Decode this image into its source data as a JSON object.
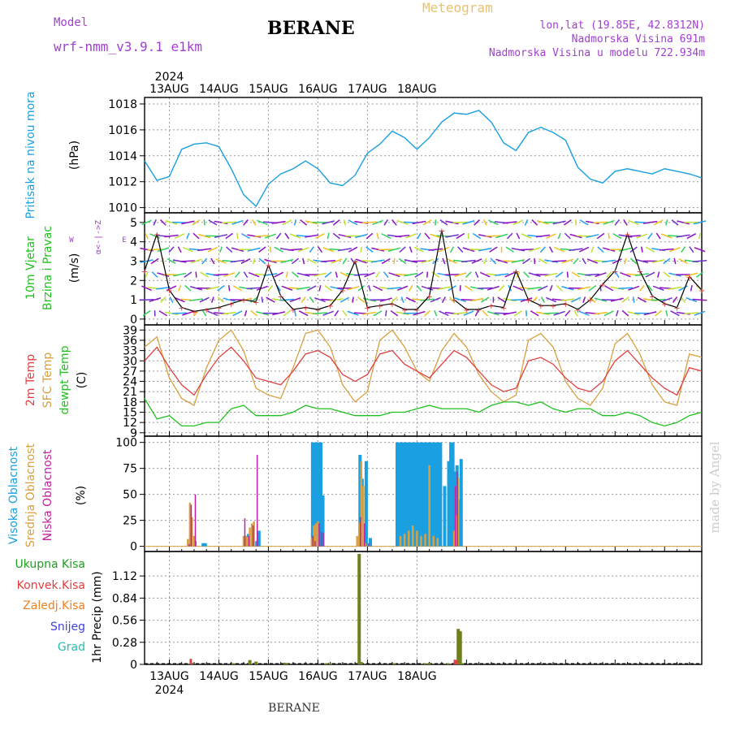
{
  "header": {
    "model_label": "Model",
    "model_value": "wrf-nmm_v3.9.1 e1km",
    "title": "BERANE",
    "meteogram": "Meteogram",
    "lonlat": "lon,lat (19.85E, 42.8312N)",
    "elev": "Nadmorska Visina 691m",
    "elev_model": "Nadmorska Visina u modelu 722.934m",
    "footer": "BERANE",
    "credit": "made by Angel",
    "year_top": "2024",
    "year_bottom": "2024"
  },
  "colors": {
    "pressure": "#1aa0e0",
    "temp2m": "#e04040",
    "sfc": "#d8a040",
    "dewpt": "#20c020",
    "visoka": "#1aa0e0",
    "srednja": "#d8a040",
    "niska": "#c020a0",
    "ukupna": "#20a020",
    "konvek": "#e04040",
    "zaledj": "#f08020",
    "snijeg": "#4040e0",
    "grad": "#20c0b0",
    "wind_label": "#20c020",
    "wind_arrow": "#9010c0"
  },
  "chart_data": [
    {
      "type": "line",
      "panel": "pressure",
      "ylabel_main": "Pritisak na nivou mora",
      "ylabel_unit": "(hPa)",
      "x_dates": [
        "13AUG",
        "14AUG",
        "15AUG",
        "16AUG",
        "17AUG",
        "18AUG"
      ],
      "x_start_hour": 12,
      "hours": [
        12,
        18,
        24,
        30,
        36,
        42,
        48,
        54,
        60,
        66,
        72,
        78,
        84,
        90,
        96,
        102,
        108,
        114,
        120,
        126,
        132,
        138,
        144,
        150,
        156,
        162,
        168,
        174,
        180,
        186,
        192,
        198,
        204,
        210,
        216,
        222,
        228,
        234,
        240,
        246,
        252,
        258,
        264,
        270,
        276,
        282
      ],
      "series": [
        {
          "name": "Pritisak na nivou mora",
          "values": [
            1013.6,
            1012.1,
            1012.4,
            1014.5,
            1014.9,
            1015.0,
            1014.7,
            1013.0,
            1011.0,
            1010.1,
            1011.8,
            1012.6,
            1013.0,
            1013.6,
            1013.0,
            1011.9,
            1011.7,
            1012.5,
            1014.2,
            1014.9,
            1015.9,
            1015.4,
            1014.5,
            1015.4,
            1016.6,
            1017.3,
            1017.2,
            1017.5,
            1016.6,
            1015.0,
            1014.4,
            1015.8,
            1016.2,
            1015.8,
            1015.2,
            1013.1,
            1012.2,
            1011.9,
            1012.8,
            1013.0,
            1012.8,
            1012.6,
            1013.0,
            1012.8,
            1012.6,
            1012.3
          ]
        }
      ],
      "ylim": [
        1009.6,
        1018.5
      ],
      "yticks": [
        1010,
        1012,
        1014,
        1016,
        1018
      ]
    },
    {
      "type": "line",
      "panel": "wind",
      "ylabel_main": "10m Vjetar",
      "ylabel_sub": "Brzina i Pravac",
      "ylabel_unit": "(m/s)",
      "compass": [
        "N",
        "S",
        "W",
        "E"
      ],
      "compass_axis": "α<-|->Z",
      "hours": [
        12,
        18,
        24,
        30,
        36,
        42,
        48,
        54,
        60,
        66,
        72,
        78,
        84,
        90,
        96,
        102,
        108,
        114,
        120,
        126,
        132,
        138,
        144,
        150,
        156,
        162,
        168,
        174,
        180,
        186,
        192,
        198,
        204,
        210,
        216,
        222,
        228,
        234,
        240,
        246,
        252,
        258,
        264,
        270,
        276,
        282
      ],
      "series": [
        {
          "name": "Brzina",
          "values": [
            2.5,
            4.4,
            1.5,
            0.6,
            0.4,
            0.5,
            0.6,
            0.8,
            1.0,
            0.9,
            2.8,
            1.2,
            0.5,
            0.6,
            0.5,
            0.7,
            1.5,
            3.0,
            0.6,
            0.7,
            0.8,
            0.5,
            0.5,
            1.2,
            4.6,
            1.0,
            0.5,
            0.5,
            0.7,
            0.6,
            2.5,
            1.0,
            0.7,
            0.7,
            0.8,
            0.5,
            1.0,
            1.8,
            2.5,
            4.4,
            2.5,
            1.2,
            0.8,
            0.6,
            2.2,
            1.5
          ]
        }
      ],
      "ylim": [
        -0.3,
        5.5
      ],
      "yticks": [
        0,
        1,
        2,
        3,
        4,
        5
      ]
    },
    {
      "type": "line",
      "panel": "temperature",
      "ylabel_series": [
        "2m Temp",
        "SFC Temp",
        "dewpt Temp"
      ],
      "ylabel_unit": "(C)",
      "hours": [
        12,
        18,
        24,
        30,
        36,
        42,
        48,
        54,
        60,
        66,
        72,
        78,
        84,
        90,
        96,
        102,
        108,
        114,
        120,
        126,
        132,
        138,
        144,
        150,
        156,
        162,
        168,
        174,
        180,
        186,
        192,
        198,
        204,
        210,
        216,
        222,
        228,
        234,
        240,
        246,
        252,
        258,
        264,
        270,
        276,
        282
      ],
      "series": [
        {
          "name": "2m Temp",
          "values": [
            30,
            34,
            28,
            23,
            20,
            26,
            31,
            34,
            30,
            25,
            24,
            23,
            27,
            32,
            33,
            31,
            26,
            24,
            26,
            32,
            33,
            29,
            27,
            25,
            29,
            33,
            31,
            27,
            23,
            21,
            22,
            30,
            31,
            29,
            25,
            22,
            21,
            24,
            30,
            33,
            29,
            25,
            22,
            20,
            28,
            27
          ]
        },
        {
          "name": "SFC Temp",
          "values": [
            34,
            37,
            25,
            19,
            17,
            28,
            36,
            39,
            33,
            22,
            20,
            19,
            28,
            38,
            39,
            34,
            23,
            18,
            21,
            36,
            39,
            34,
            27,
            24,
            33,
            38,
            34,
            26,
            21,
            18,
            20,
            36,
            38,
            34,
            24,
            19,
            17,
            22,
            35,
            38,
            32,
            23,
            18,
            17,
            32,
            31
          ]
        },
        {
          "name": "dewpt Temp",
          "values": [
            19,
            13,
            14,
            11,
            11,
            12,
            12,
            16,
            17,
            14,
            14,
            14,
            15,
            17,
            16,
            16,
            15,
            14,
            14,
            14,
            15,
            15,
            16,
            17,
            16,
            16,
            16,
            15,
            17,
            18,
            18,
            17,
            18,
            16,
            15,
            16,
            16,
            14,
            14,
            15,
            14,
            12,
            11,
            12,
            14,
            15
          ]
        }
      ],
      "ylim": [
        8,
        40.5
      ],
      "yticks": [
        9,
        12,
        15,
        18,
        21,
        24,
        27,
        30,
        33,
        36,
        39
      ]
    },
    {
      "type": "bar",
      "panel": "clouds",
      "ylabel_series": [
        "Visoka Oblacnost",
        "Srednja Oblacnost",
        "Niska Oblacnost"
      ],
      "ylabel_unit": "(%)",
      "series": [
        {
          "name": "Visoka Oblacnost",
          "points": [
            [
              35,
              8
            ],
            [
              37,
              5
            ],
            [
              41,
              3
            ],
            [
              42,
              3
            ],
            [
              62,
              10
            ],
            [
              63,
              12
            ],
            [
              67,
              5
            ],
            [
              68,
              15
            ],
            [
              94,
              100
            ],
            [
              95,
              100
            ],
            [
              96,
              100
            ],
            [
              97,
              100
            ],
            [
              98,
              100
            ],
            [
              99,
              49
            ],
            [
              117,
              88
            ],
            [
              118,
              65
            ],
            [
              119,
              5
            ],
            [
              120,
              82
            ],
            [
              122,
              8
            ],
            [
              135,
              100
            ],
            [
              136,
              100
            ],
            [
              137,
              100
            ],
            [
              138,
              100
            ],
            [
              139,
              100
            ],
            [
              140,
              100
            ],
            [
              141,
              100
            ],
            [
              142,
              100
            ],
            [
              143,
              100
            ],
            [
              144,
              100
            ],
            [
              145,
              100
            ],
            [
              146,
              100
            ],
            [
              147,
              100
            ],
            [
              148,
              100
            ],
            [
              149,
              100
            ],
            [
              150,
              100
            ],
            [
              151,
              100
            ],
            [
              152,
              100
            ],
            [
              153,
              100
            ],
            [
              154,
              100
            ],
            [
              155,
              100
            ],
            [
              156,
              100
            ],
            [
              158,
              58
            ],
            [
              160,
              82
            ],
            [
              161,
              100
            ],
            [
              162,
              100
            ],
            [
              163,
              72
            ],
            [
              164,
              78
            ],
            [
              165,
              45
            ],
            [
              166,
              84
            ]
          ]
        },
        {
          "name": "Srednja Oblacnost",
          "points": [
            [
              33,
              7
            ],
            [
              34,
              42
            ],
            [
              35,
              28
            ],
            [
              36,
              10
            ],
            [
              60,
              10
            ],
            [
              61,
              10
            ],
            [
              62,
              9
            ],
            [
              63,
              18
            ],
            [
              64,
              22
            ],
            [
              65,
              24
            ],
            [
              93,
              8
            ],
            [
              94,
              20
            ],
            [
              95,
              22
            ],
            [
              96,
              24
            ],
            [
              115,
              10
            ],
            [
              116,
              23
            ],
            [
              117,
              82
            ],
            [
              118,
              58
            ],
            [
              119,
              3
            ],
            [
              136,
              10
            ],
            [
              138,
              12
            ],
            [
              140,
              15
            ],
            [
              142,
              20
            ],
            [
              144,
              15
            ],
            [
              146,
              10
            ],
            [
              148,
              12
            ],
            [
              150,
              78
            ],
            [
              152,
              10
            ],
            [
              154,
              8
            ],
            [
              162,
              15
            ],
            [
              163,
              30
            ],
            [
              164,
              66
            ]
          ]
        },
        {
          "name": "Niska Oblacnost",
          "points": [
            [
              33,
              2
            ],
            [
              34,
              40
            ],
            [
              36,
              50
            ],
            [
              60,
              27
            ],
            [
              62,
              10
            ],
            [
              64,
              20
            ],
            [
              66,
              88
            ],
            [
              93,
              10
            ],
            [
              94,
              5
            ],
            [
              96,
              22
            ],
            [
              97,
              14
            ],
            [
              98,
              13
            ],
            [
              116,
              28
            ],
            [
              118,
              22
            ],
            [
              120,
              3
            ],
            [
              162,
              58
            ],
            [
              163,
              72
            ]
          ]
        }
      ],
      "ylim": [
        -5,
        106
      ],
      "yticks": [
        0,
        25,
        50,
        75,
        100
      ]
    },
    {
      "type": "bar",
      "panel": "precip",
      "ylabel_series": [
        "Ukupna Kisa",
        "Konvek.Kisa",
        "Zaledj.Kisa",
        "Snijeg",
        "Grad"
      ],
      "ylabel_unit": "1hr Precip (mm)",
      "series": [
        {
          "name": "Ukupna Kisa",
          "points": [
            [
              35,
              0.01
            ],
            [
              55,
              0.015
            ],
            [
              63,
              0.055
            ],
            [
              66,
              0.035
            ],
            [
              80,
              0.02
            ],
            [
              81,
              0.01
            ],
            [
              100,
              0.015
            ],
            [
              102,
              0.015
            ],
            [
              116,
              1.4
            ],
            [
              117,
              0.03
            ],
            [
              133,
              0.015
            ],
            [
              148,
              0.015
            ],
            [
              150,
              0.02
            ],
            [
              159,
              0.015
            ],
            [
              163,
              0.045
            ],
            [
              164,
              0.45
            ],
            [
              165,
              0.42
            ],
            [
              166,
              0.015
            ]
          ]
        },
        {
          "name": "Konvek.Kisa",
          "points": [
            [
              34,
              0.07
            ],
            [
              162,
              0.06
            ],
            [
              163,
              0.055
            ]
          ]
        }
      ],
      "ylim": [
        0,
        1.43
      ],
      "yticks": [
        0,
        0.28,
        0.56,
        0.84,
        1.12
      ]
    }
  ]
}
